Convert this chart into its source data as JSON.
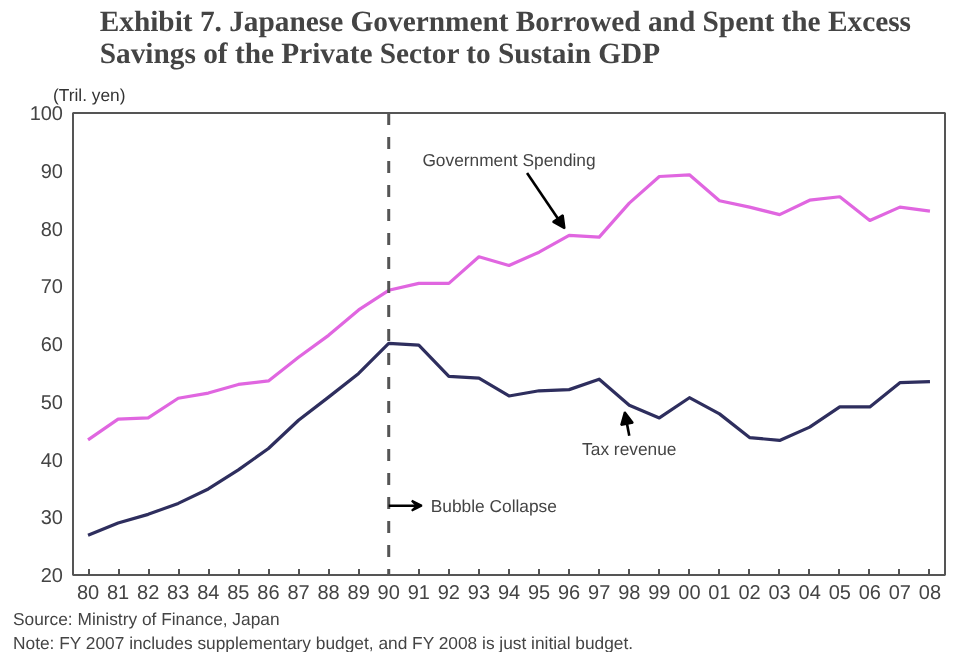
{
  "chart_data": {
    "type": "line",
    "title": "Exhibit 7.  Japanese Government Borrowed and Spent the Excess\nSavings of the Private Sector to Sustain GDP",
    "ylabel": "(Tril. yen)",
    "categories": [
      "80",
      "81",
      "82",
      "83",
      "84",
      "85",
      "86",
      "87",
      "88",
      "89",
      "90",
      "91",
      "92",
      "93",
      "94",
      "95",
      "96",
      "97",
      "98",
      "99",
      "00",
      "01",
      "02",
      "03",
      "04",
      "05",
      "06",
      "07",
      "08"
    ],
    "series": [
      {
        "name": "Government Spending",
        "color": "#e066e0",
        "values": [
          43.4,
          47,
          47.2,
          50.6,
          51.5,
          53,
          53.6,
          57.7,
          61.5,
          65.9,
          69.3,
          70.5,
          70.5,
          75.1,
          73.6,
          75.9,
          78.8,
          78.5,
          84.4,
          89,
          89.3,
          84.8,
          83.7,
          82.4,
          84.9,
          85.5,
          81.4,
          83.7,
          83
        ]
      },
      {
        "name": "Tax revenue",
        "color": "#2e2e5e",
        "values": [
          26.9,
          29,
          30.5,
          32.4,
          34.9,
          38.2,
          41.9,
          46.8,
          50.8,
          54.9,
          60.1,
          59.8,
          54.4,
          54.1,
          51,
          51.9,
          52.1,
          53.9,
          49.4,
          47.2,
          50.7,
          47.9,
          43.8,
          43.3,
          45.6,
          49.1,
          49.1,
          53.3,
          53.5
        ]
      }
    ],
    "ylim": [
      20,
      100
    ],
    "yticks": [
      20,
      30,
      40,
      50,
      60,
      70,
      80,
      90,
      100
    ],
    "ref_lines": [
      {
        "axis": "x",
        "value": "90",
        "label": "Bubble Collapse",
        "line_style": "dashed",
        "color": "#555555"
      }
    ],
    "annotations": [
      "Source: Ministry of Finance, Japan",
      "Note: FY 2007 includes supplementary budget, and FY 2008 is just initial budget."
    ],
    "grid": false,
    "legend": false,
    "marker": "none",
    "line_style": "solid"
  }
}
